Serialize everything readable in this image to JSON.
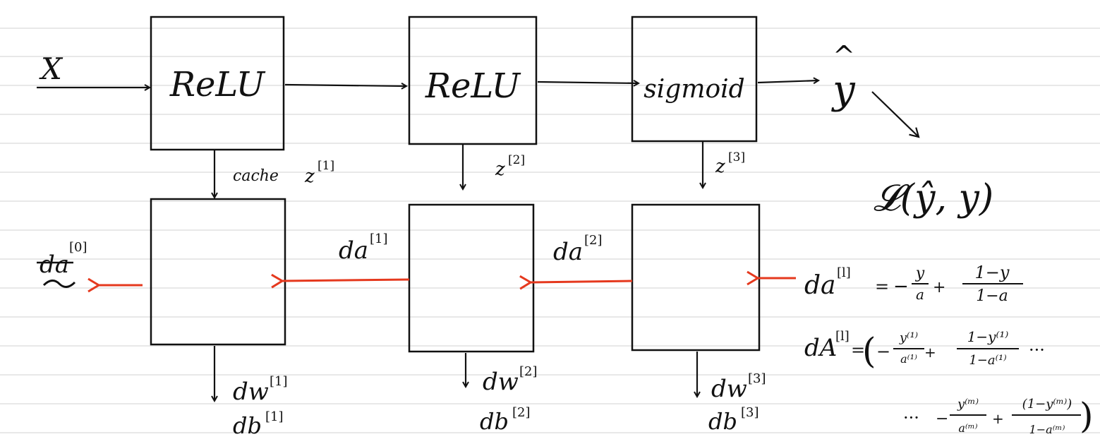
{
  "colors": {
    "ink": "#111111",
    "backprop_arrow": "#e5391e",
    "ruled_line": "#d2d2d2",
    "paper": "#ffffff"
  },
  "forward": {
    "input_label": "X",
    "layers": [
      {
        "activation": "ReLU",
        "cache_label": "cache",
        "cache_var": "z",
        "cache_sup": "[1]"
      },
      {
        "activation": "ReLU",
        "cache_var": "z",
        "cache_sup": "[2]"
      },
      {
        "activation": "sigmoid",
        "cache_var": "z",
        "cache_sup": "[3]"
      }
    ],
    "output_label": "y",
    "output_hat": "^"
  },
  "loss": {
    "label": "𝓛(ŷ, y)"
  },
  "backward": {
    "da0": {
      "base": "da",
      "sup": "[0]"
    },
    "da1": {
      "base": "da",
      "sup": "[1]"
    },
    "da2": {
      "base": "da",
      "sup": "[2]"
    },
    "grads": [
      {
        "dw": "dw",
        "dw_sup": "[1]",
        "db": "db",
        "db_sup": "[1]"
      },
      {
        "dw": "dw",
        "dw_sup": "[2]",
        "db": "db",
        "db_sup": "[2]"
      },
      {
        "dw": "dw",
        "dw_sup": "[3]",
        "db": "db",
        "db_sup": "[3]"
      }
    ]
  },
  "equations": {
    "line1": {
      "lhs": "da",
      "lhs_sup": "[l]",
      "eq": "=",
      "minus": "−",
      "y": "y",
      "a": "a",
      "plus": "+",
      "one_minus_y": "1−y",
      "one_minus_a": "1−a"
    },
    "line2": {
      "lhs": "dA",
      "lhs_sup": "[l]",
      "eq": "=",
      "open": "(",
      "minus": "−",
      "y1": "y⁽¹⁾",
      "a1": "a⁽¹⁾",
      "plus": "+",
      "one_minus_y1": "1−y⁽¹⁾",
      "one_minus_a1": "1−a⁽¹⁾",
      "ellipsis": "···"
    },
    "line3": {
      "ellipsis": "···",
      "minus": "−",
      "ym": "y⁽ᵐ⁾",
      "am": "a⁽ᵐ⁾",
      "plus": "+",
      "one_minus_ym": "(1−y⁽ᵐ⁾)",
      "one_minus_am": "1−a⁽ᵐ⁾",
      "close": ")"
    }
  }
}
